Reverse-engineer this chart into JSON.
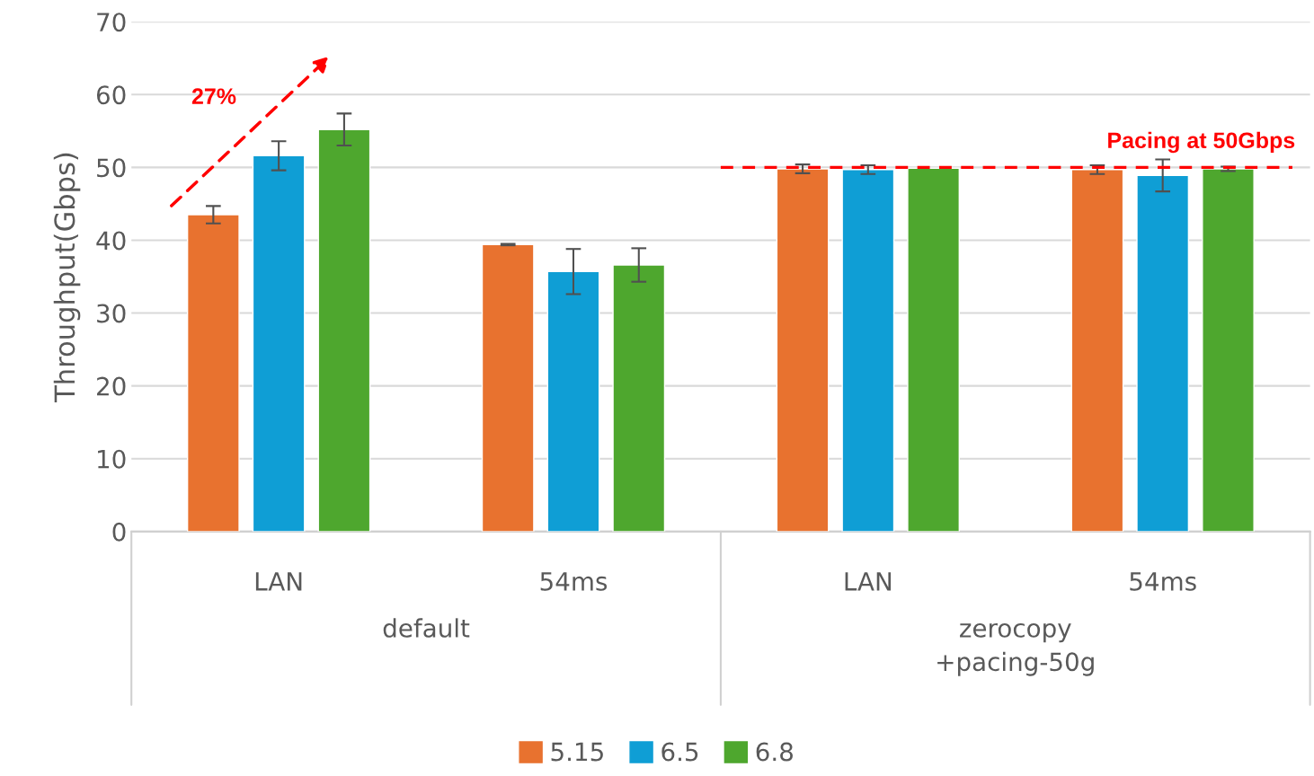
{
  "chart_data": {
    "type": "bar",
    "ylabel": "Throughput(Gbps)",
    "categories": [
      "LAN",
      "54ms",
      "LAN",
      "54ms"
    ],
    "series": [
      {
        "name": "5.15",
        "color": "#e8722f",
        "values": [
          43.5,
          39.4,
          49.8,
          49.7
        ],
        "errors": [
          1.2,
          0.1,
          0.6,
          0.6
        ]
      },
      {
        "name": "6.5",
        "color": "#0f9ed5",
        "values": [
          51.6,
          35.7,
          49.7,
          48.9
        ],
        "errors": [
          2.0,
          3.1,
          0.6,
          2.2
        ]
      },
      {
        "name": "6.8",
        "color": "#4ea72e",
        "values": [
          55.2,
          36.6,
          49.9,
          49.8
        ],
        "errors": [
          2.2,
          2.3,
          null,
          0.3
        ]
      }
    ],
    "ylim": [
      0,
      70
    ],
    "yticks": [
      0,
      10,
      20,
      30,
      40,
      50,
      60,
      70
    ],
    "grid": "y",
    "legend": "bottom",
    "ref_lines": [
      {
        "axis": "y",
        "value": 50,
        "label": "Pacing at 50Gbps",
        "color": "#ff0000",
        "line_style": "dashed"
      }
    ],
    "annotations": [
      "default",
      "zerocopy\n+pacing-50g",
      "27%"
    ]
  }
}
